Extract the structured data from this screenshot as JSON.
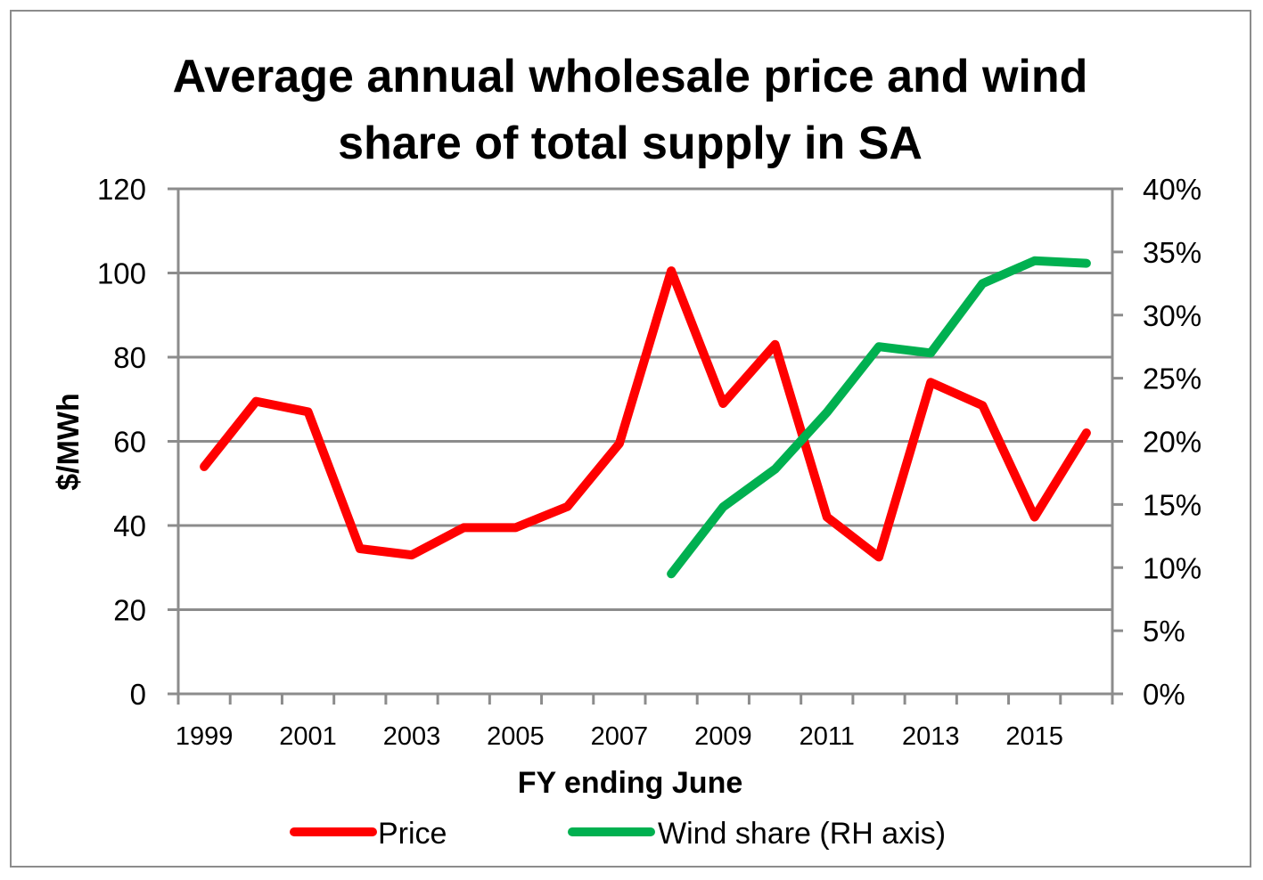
{
  "chart_data": {
    "type": "line",
    "title_lines": [
      "Average annual wholesale price and wind",
      "share of total supply in SA"
    ],
    "xlabel": "FY ending June",
    "ylabel": "$/MWh",
    "y2label": "",
    "x": [
      1999,
      2000,
      2001,
      2002,
      2003,
      2004,
      2005,
      2006,
      2007,
      2008,
      2009,
      2010,
      2011,
      2012,
      2013,
      2014,
      2015,
      2016
    ],
    "x_tick_labels": [
      "1999",
      "2001",
      "2003",
      "2005",
      "2007",
      "2009",
      "2011",
      "2013",
      "2015"
    ],
    "ylim": [
      0,
      120
    ],
    "y_ticks": [
      0,
      20,
      40,
      60,
      80,
      100,
      120
    ],
    "y_tick_labels": [
      "0",
      "20",
      "40",
      "60",
      "80",
      "100",
      "120"
    ],
    "y2lim": [
      0,
      40
    ],
    "y2_ticks": [
      0,
      5,
      10,
      15,
      20,
      25,
      30,
      35,
      40
    ],
    "y2_tick_labels": [
      "0%",
      "5%",
      "10%",
      "15%",
      "20%",
      "25%",
      "30%",
      "35%",
      "40%"
    ],
    "grid": true,
    "legend_position": "bottom",
    "series": [
      {
        "name": "Price",
        "axis": "left",
        "color": "#ff0000",
        "values": [
          54,
          69.5,
          67,
          34.5,
          33,
          39.5,
          39.5,
          44.5,
          59.5,
          100.5,
          69,
          83,
          42,
          32.5,
          74,
          68.5,
          42,
          62
        ]
      },
      {
        "name": "Wind share (RH axis)",
        "axis": "right",
        "color": "#00b050",
        "values": [
          null,
          null,
          null,
          null,
          null,
          null,
          null,
          null,
          null,
          9.5,
          14.8,
          17.8,
          22.3,
          27.5,
          27,
          32.5,
          34.3,
          34.1
        ]
      }
    ]
  }
}
